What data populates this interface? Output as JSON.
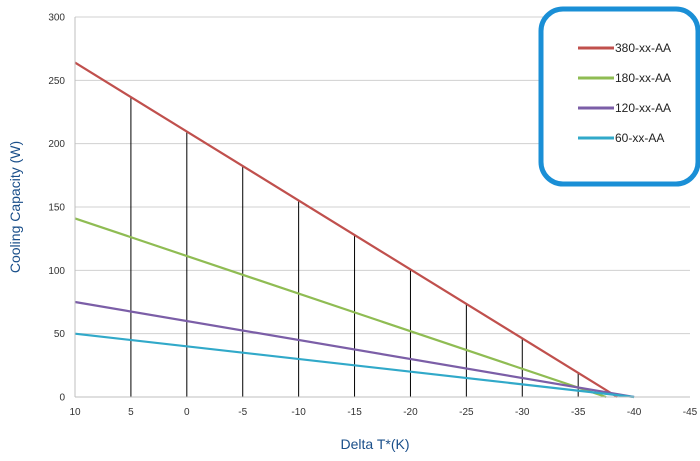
{
  "chart_data": {
    "type": "line",
    "title": "",
    "xlabel": "Delta T*(K)",
    "ylabel": "Cooling Capacity (W)",
    "xlim": [
      10,
      -45
    ],
    "ylim": [
      0,
      300
    ],
    "x_ticks": [
      "10",
      "5",
      "0",
      "-5",
      "-10",
      "-15",
      "-20",
      "-25",
      "-30",
      "-35",
      "-40",
      "-45"
    ],
    "y_ticks": [
      "0",
      "50",
      "100",
      "150",
      "200",
      "250",
      "300"
    ],
    "grid": "horizontal",
    "legend_position": "top-right",
    "reference_lines_at_x": [
      5,
      0,
      -5,
      -10,
      -15,
      -20,
      -25,
      -30,
      -35
    ],
    "series": [
      {
        "name": "380-xx-AA",
        "color": "#c0504d",
        "x": [
          10,
          -38.5
        ],
        "y": [
          264,
          0
        ]
      },
      {
        "name": "180-xx-AA",
        "color": "#8fbc53",
        "x": [
          10,
          -37.5
        ],
        "y": [
          141,
          0
        ]
      },
      {
        "name": "120-xx-AA",
        "color": "#7b5ea7",
        "x": [
          10,
          -40
        ],
        "y": [
          75,
          0
        ]
      },
      {
        "name": "60-xx-AA",
        "color": "#31a9c9",
        "x": [
          10,
          -40
        ],
        "y": [
          50,
          0
        ]
      }
    ]
  },
  "colors": {
    "legend_border": "#1a8fd6",
    "axis_title": "#1a4f8a",
    "grid": "#d0d0d0",
    "reference_line": "#000000"
  }
}
